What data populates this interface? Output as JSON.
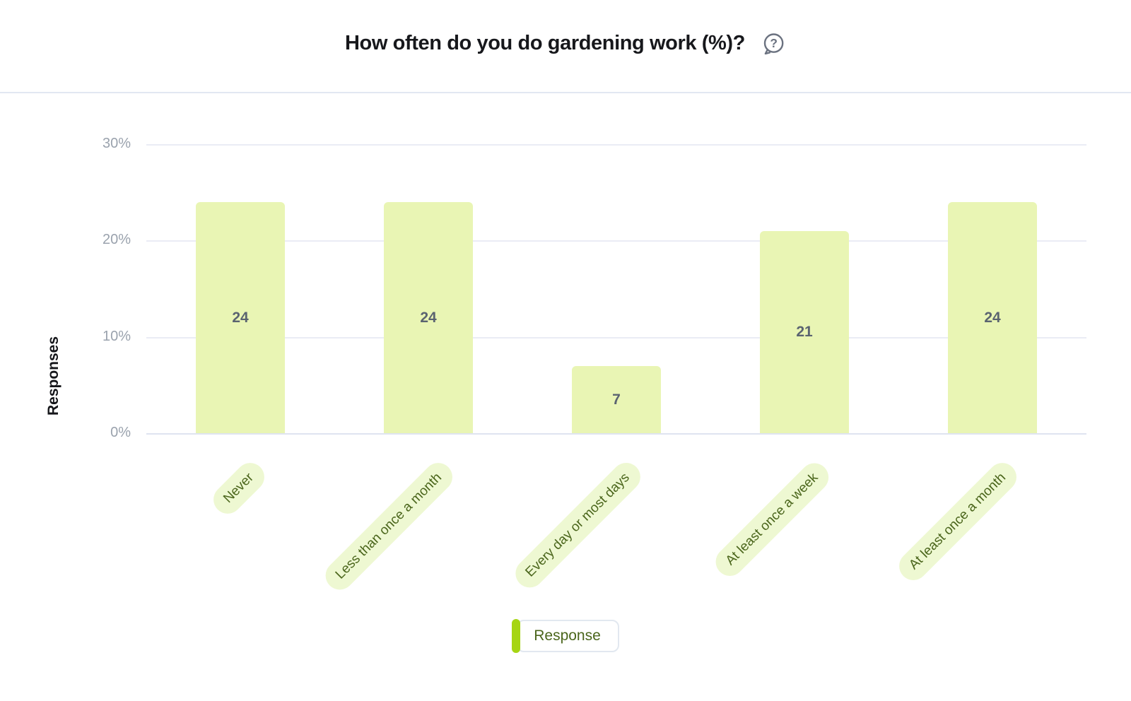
{
  "header": {
    "help_icon": "question-bubble-icon"
  },
  "chart_data": {
    "type": "bar",
    "title": "How often do you do gardening work (%)?",
    "ylabel": "Responses",
    "xlabel": "",
    "categories": [
      "Never",
      "Less than once a month",
      "Every day or most days",
      "At least once a week",
      "At least once a month"
    ],
    "values": [
      24,
      24,
      7,
      21,
      24
    ],
    "value_labels": [
      "24",
      "24",
      "7",
      "21",
      "24"
    ],
    "yticks": [
      "0%",
      "10%",
      "20%",
      "30%"
    ],
    "ylim": [
      0,
      30
    ],
    "grid": true,
    "legend": {
      "label": "Response",
      "position": "bottom"
    }
  },
  "colors": {
    "title_text": "#17181c",
    "divider": "#e2e7f2",
    "gridline": "#eaecf5",
    "axis_line": "#dfe4f0",
    "tick_text": "#9aa2ad",
    "bar_fill": "#e9f5b4",
    "bar_value_text": "#5a6370",
    "xlabel_pill_bg": "#eef8d2",
    "xlabel_text": "#4b661c",
    "legend_marker": "#a6d513",
    "legend_border": "#e2e8f0",
    "legend_text": "#4b661c",
    "help_icon": "#6b7280"
  }
}
